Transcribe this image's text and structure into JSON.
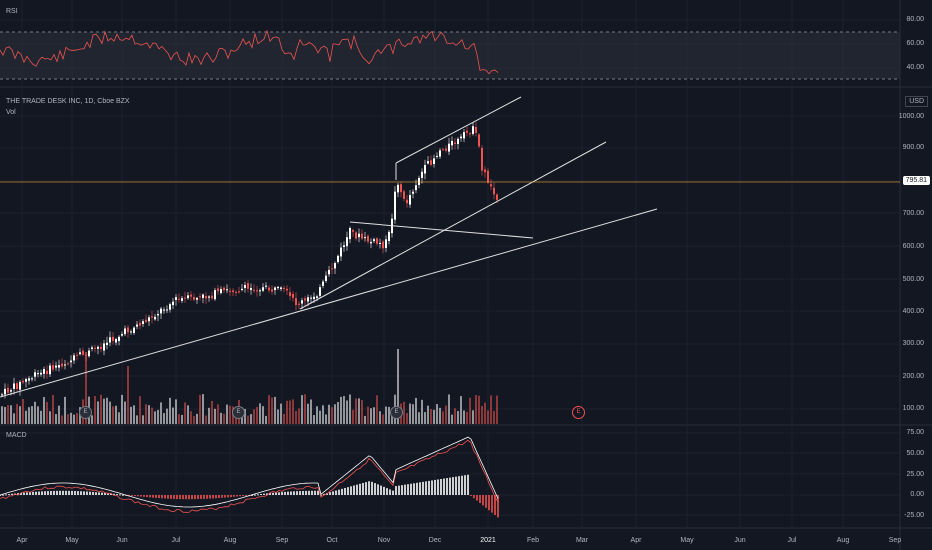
{
  "rsi": {
    "label": "RSI",
    "ticks": [
      "80.00",
      "60.00",
      "40.00"
    ]
  },
  "main": {
    "title": "THE TRADE DESK INC, 1D, Cboe BZX",
    "vol_label": "Vol",
    "currency": "USD",
    "price_badge": "795.81",
    "ticks": [
      "1000.00",
      "900.00",
      "800.00",
      "700.00",
      "600.00",
      "500.00",
      "400.00",
      "300.00",
      "200.00",
      "100.00"
    ],
    "earnings_marker": "E"
  },
  "macd": {
    "label": "MACD",
    "ticks": [
      "75.00",
      "50.00",
      "25.00",
      "0.00",
      "-25.00"
    ]
  },
  "xaxis": {
    "months": [
      "Apr",
      "May",
      "Jun",
      "Jul",
      "Aug",
      "Sep",
      "Oct",
      "Nov",
      "Dec",
      "2021",
      "Feb",
      "Mar",
      "Apr",
      "May",
      "Jun",
      "Jul",
      "Aug",
      "Sep"
    ]
  },
  "colors": {
    "up": "#ffffff",
    "down": "#ef5350",
    "rsi": "#ef5350",
    "macd": "#ffffff",
    "signal": "#ef5350",
    "price_line": "#f0a030"
  }
}
